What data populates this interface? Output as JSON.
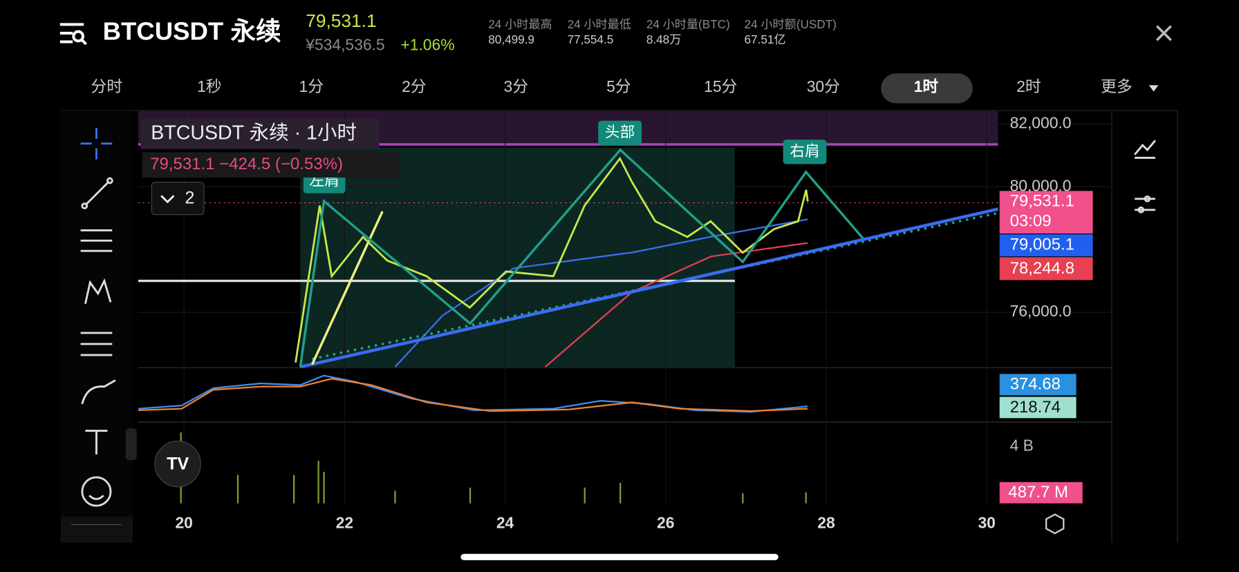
{
  "header": {
    "title": "BTCUSDT 永续",
    "price": "79,531.1",
    "price_cny": "¥534,536.5",
    "change": "+1.06%",
    "stats": [
      {
        "label": "24 小时最高",
        "value": "80,499.9"
      },
      {
        "label": "24 小时最低",
        "value": "77,554.5"
      },
      {
        "label": "24 小时量(BTC)",
        "value": "8.48万"
      },
      {
        "label": "24 小时额(USDT)",
        "value": "67.51亿"
      }
    ]
  },
  "tabs": {
    "items": [
      "分时",
      "1秒",
      "1分",
      "2分",
      "3分",
      "5分",
      "15分",
      "30分",
      "1时",
      "2时",
      "更多"
    ],
    "active": 8
  },
  "legend": {
    "title": "BTCUSDT 永续 · 1小时",
    "quote": "79,531.1 −424.5 (−0.53%)",
    "indicators": "2"
  },
  "pattern_labels": [
    "左肩",
    "头部",
    "右肩"
  ],
  "price_tags": {
    "last": "79,531.1",
    "countdown": "03:09",
    "ma_blue": "79,005.1",
    "ma_red": "78,244.8"
  },
  "macd_tags": [
    "374.68",
    "218.74"
  ],
  "volume": {
    "axis_label": "4 B",
    "tag": "487.7 M"
  },
  "chart_data": {
    "type": "line",
    "color": "#c4e84a",
    "x": [
      21.39,
      21.69,
      21.84,
      22.23,
      22.53,
      23.02,
      23.56,
      24.01,
      24.6,
      24.99,
      25.43,
      25.58,
      25.87,
      26.27,
      26.56,
      26.96,
      27.35,
      27.65,
      27.75,
      27.77
    ],
    "values": [
      74400,
      79400,
      77150,
      78400,
      77650,
      77150,
      76150,
      77300,
      77150,
      79400,
      80900,
      80150,
      78900,
      78400,
      78900,
      77900,
      78650,
      78900,
      79900,
      79531.1
    ],
    "xlim": [
      19.43,
      30.14
    ],
    "ylim": [
      74260,
      82430
    ],
    "xticks": [
      20,
      22,
      24,
      26,
      28,
      30
    ],
    "yticks": [
      {
        "value": 76000,
        "label": "76,000.0"
      },
      {
        "value": 80000,
        "label": "80,000.0"
      },
      {
        "value": 82000,
        "label": "82,000.0"
      }
    ],
    "grid": true
  }
}
